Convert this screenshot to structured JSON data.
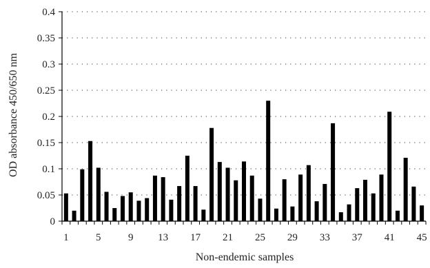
{
  "chart_data": {
    "type": "bar",
    "title": "",
    "xlabel": "Non-endemic samples",
    "ylabel": "OD absorbance 450/650 nm",
    "ylim": [
      0,
      0.4
    ],
    "yticks": [
      "0",
      "0.05",
      "0.1",
      "0.15",
      "0.2",
      "0.25",
      "0.3",
      "0.35",
      "0.4"
    ],
    "xtick_labels": [
      "1",
      "5",
      "9",
      "13",
      "17",
      "21",
      "25",
      "29",
      "33",
      "37",
      "41",
      "45"
    ],
    "categories": [
      "1",
      "2",
      "3",
      "4",
      "5",
      "6",
      "7",
      "8",
      "9",
      "10",
      "11",
      "12",
      "13",
      "14",
      "15",
      "16",
      "17",
      "18",
      "19",
      "20",
      "21",
      "22",
      "23",
      "24",
      "25",
      "26",
      "27",
      "28",
      "29",
      "30",
      "31",
      "32",
      "33",
      "34",
      "35",
      "36",
      "37",
      "38",
      "39",
      "40",
      "41",
      "42",
      "43",
      "44",
      "45"
    ],
    "values": [
      0.053,
      0.02,
      0.099,
      0.153,
      0.102,
      0.056,
      0.025,
      0.048,
      0.055,
      0.039,
      0.044,
      0.087,
      0.084,
      0.041,
      0.067,
      0.125,
      0.067,
      0.022,
      0.178,
      0.113,
      0.102,
      0.078,
      0.114,
      0.087,
      0.043,
      0.23,
      0.024,
      0.08,
      0.028,
      0.089,
      0.107,
      0.038,
      0.071,
      0.187,
      0.017,
      0.032,
      0.063,
      0.079,
      0.053,
      0.089,
      0.209,
      0.02,
      0.121,
      0.066,
      0.03
    ],
    "grid": "horizontal-dotted",
    "bar_color": "#000000"
  }
}
